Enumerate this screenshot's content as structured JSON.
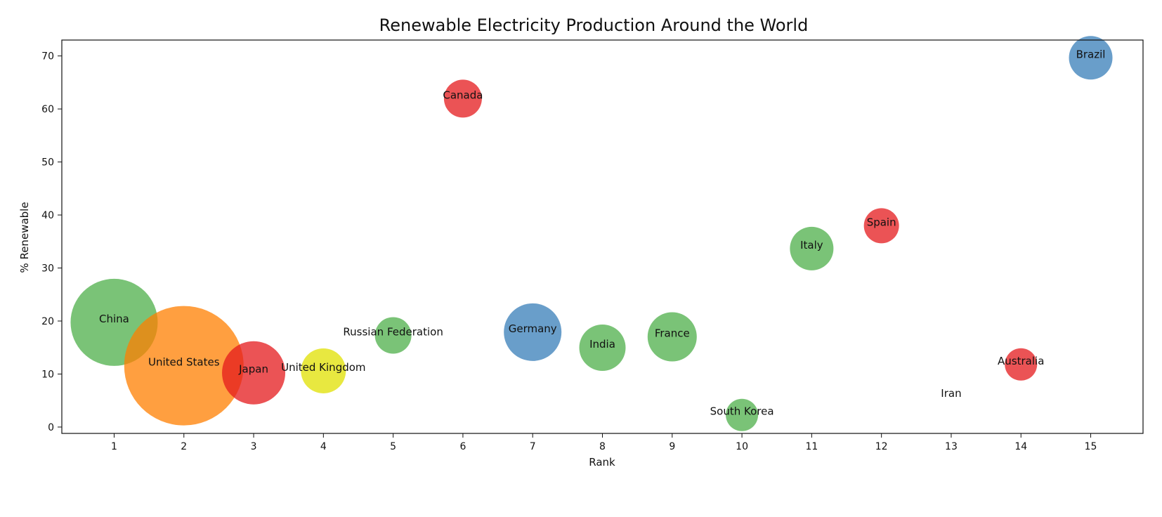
{
  "chart_data": {
    "type": "scatter",
    "title": "Renewable Electricity Production Around the World",
    "xlabel": "Rank",
    "ylabel": "% Renewable",
    "xlim": [
      0.25,
      15.75
    ],
    "ylim": [
      -1.2,
      73
    ],
    "xticks": [
      1,
      2,
      3,
      4,
      5,
      6,
      7,
      8,
      9,
      10,
      11,
      12,
      13,
      14,
      15
    ],
    "yticks": [
      0,
      10,
      20,
      30,
      40,
      50,
      60,
      70
    ],
    "grid": false,
    "legend": "none",
    "points": [
      {
        "label": "China",
        "x": 1,
        "y": 19.75,
        "size": 62,
        "color": "#4daf4a"
      },
      {
        "label": "United States",
        "x": 2,
        "y": 11.57,
        "size": 85,
        "color": "#ff7f00"
      },
      {
        "label": "Japan",
        "x": 3,
        "y": 10.23,
        "size": 45,
        "color": "#e41a1c"
      },
      {
        "label": "United Kingdom",
        "x": 4,
        "y": 10.6,
        "size": 32,
        "color": "#e0e000"
      },
      {
        "label": "Russian Federation",
        "x": 5,
        "y": 17.29,
        "size": 26,
        "color": "#4daf4a"
      },
      {
        "label": "Canada",
        "x": 6,
        "y": 61.95,
        "size": 27,
        "color": "#e41a1c"
      },
      {
        "label": "Germany",
        "x": 7,
        "y": 17.9,
        "size": 41,
        "color": "#377eb8"
      },
      {
        "label": "India",
        "x": 8,
        "y": 14.97,
        "size": 33,
        "color": "#4daf4a"
      },
      {
        "label": "France",
        "x": 9,
        "y": 17.02,
        "size": 35,
        "color": "#4daf4a"
      },
      {
        "label": "South Korea",
        "x": 10,
        "y": 2.28,
        "size": 23,
        "color": "#4daf4a"
      },
      {
        "label": "Italy",
        "x": 11,
        "y": 33.67,
        "size": 31,
        "color": "#4daf4a"
      },
      {
        "label": "Spain",
        "x": 12,
        "y": 37.97,
        "size": 25,
        "color": "#e41a1c"
      },
      {
        "label": "Iran",
        "x": 13,
        "y": 5.71,
        "size": 0,
        "color": "#e41a1c"
      },
      {
        "label": "Australia",
        "x": 14,
        "y": 11.81,
        "size": 23,
        "color": "#e41a1c"
      },
      {
        "label": "Brazil",
        "x": 15,
        "y": 69.65,
        "size": 31,
        "color": "#377eb8"
      }
    ]
  }
}
